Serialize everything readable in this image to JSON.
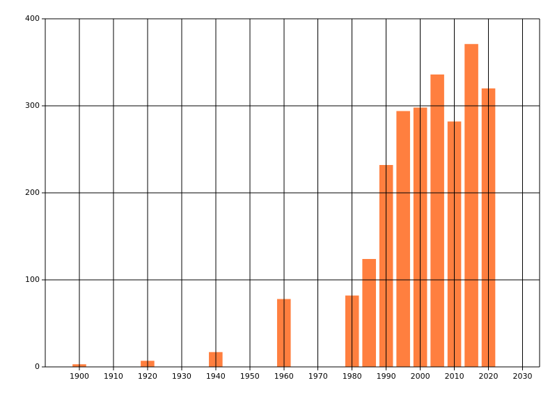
{
  "chart_data": {
    "type": "bar",
    "x": [
      1900,
      1920,
      1940,
      1960,
      1980,
      1985,
      1990,
      1995,
      2000,
      2005,
      2010,
      2015,
      2020
    ],
    "values": [
      3,
      7,
      17,
      78,
      82,
      124,
      232,
      294,
      298,
      336,
      282,
      371,
      320
    ],
    "color": "#ff7f3f",
    "xlim": [
      1890,
      2035
    ],
    "xticks": [
      1900,
      1910,
      1920,
      1930,
      1940,
      1950,
      1960,
      1970,
      1980,
      1990,
      2000,
      2010,
      2020,
      2030
    ],
    "ylim": [
      0,
      400
    ],
    "yticks": [
      0,
      100,
      200,
      300,
      400
    ],
    "grid": true
  }
}
